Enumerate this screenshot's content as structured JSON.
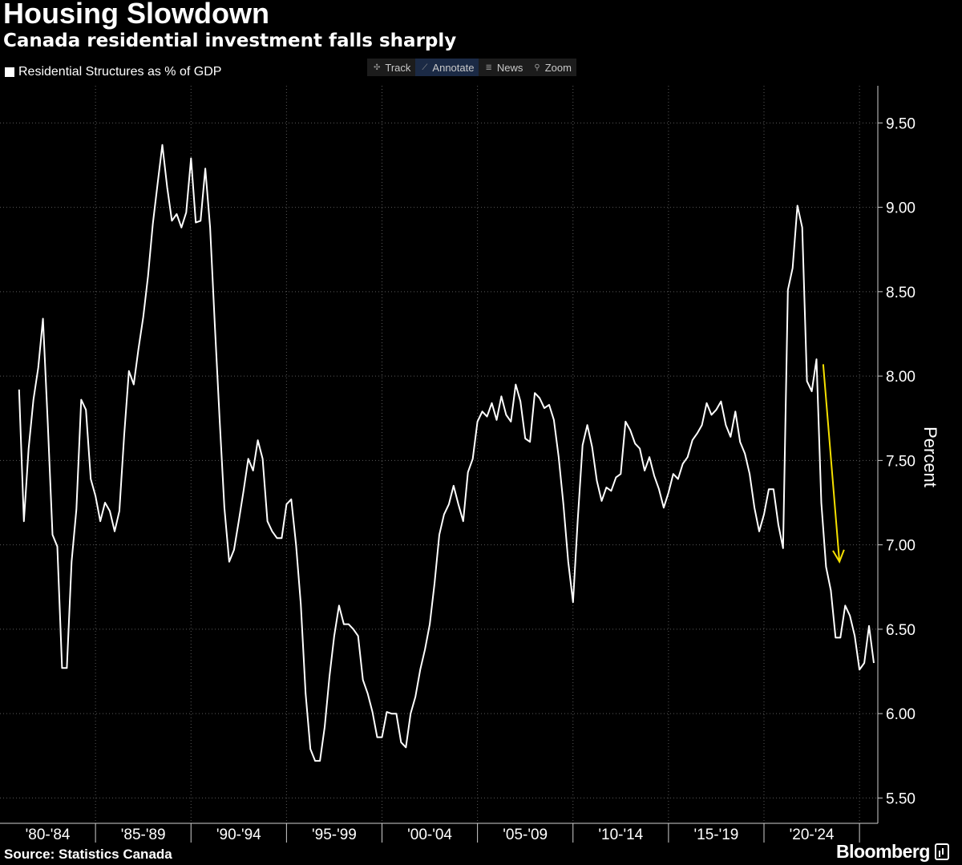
{
  "title": "Housing Slowdown",
  "subtitle": "Canada residential investment falls sharply",
  "legend_label": "Residential Structures as % of GDP",
  "toolbar": [
    {
      "label": "Track",
      "icon": "crosshair-icon",
      "active": false
    },
    {
      "label": "Annotate",
      "icon": "pencil-icon",
      "active": true
    },
    {
      "label": "News",
      "icon": "news-icon",
      "active": false
    },
    {
      "label": "Zoom",
      "icon": "magnifier-icon",
      "active": false
    }
  ],
  "source": "Source: Statistics Canada",
  "brand": "Bloomberg",
  "colors": {
    "background": "#000000",
    "line": "#ffffff",
    "arrow": "#f5e000",
    "grid": "#5a5a5a"
  },
  "chart_data": {
    "type": "line",
    "ylabel": "Percent",
    "ylim": [
      5.35,
      9.72
    ],
    "y_ticks": [
      5.5,
      6.0,
      6.5,
      7.0,
      7.5,
      8.0,
      8.5,
      9.0,
      9.5
    ],
    "y_tick_labels": [
      "5.50",
      "6.00",
      "6.50",
      "7.00",
      "7.50",
      "8.00",
      "8.50",
      "9.00",
      "9.50"
    ],
    "x_period_labels": [
      "'80-'84",
      "'85-'89",
      "'90-'94",
      "'95-'99",
      "'00-'04",
      "'05-'09",
      "'10-'14",
      "'15-'19",
      "'20-'24"
    ],
    "x_start": 1981.0,
    "quarters_per_year": 4,
    "grid": "vertical dotted",
    "legend": "top-left",
    "series": [
      {
        "name": "Residential Structures as % of GDP",
        "values": [
          7.92,
          7.14,
          7.57,
          7.86,
          8.05,
          8.34,
          7.72,
          7.06,
          6.99,
          6.27,
          6.27,
          6.9,
          7.21,
          7.86,
          7.8,
          7.39,
          7.29,
          7.14,
          7.25,
          7.2,
          7.08,
          7.2,
          7.65,
          8.03,
          7.95,
          8.16,
          8.35,
          8.59,
          8.9,
          9.14,
          9.37,
          9.12,
          8.92,
          8.96,
          8.88,
          8.97,
          9.29,
          8.91,
          8.92,
          9.23,
          8.88,
          8.3,
          7.74,
          7.22,
          6.9,
          6.97,
          7.14,
          7.32,
          7.51,
          7.44,
          7.62,
          7.51,
          7.14,
          7.08,
          7.04,
          7.04,
          7.24,
          7.27,
          7.0,
          6.65,
          6.12,
          5.79,
          5.72,
          5.72,
          5.92,
          6.22,
          6.46,
          6.64,
          6.53,
          6.53,
          6.5,
          6.46,
          6.2,
          6.12,
          6.01,
          5.86,
          5.86,
          6.01,
          6.0,
          6.0,
          5.83,
          5.8,
          6.0,
          6.1,
          6.26,
          6.38,
          6.53,
          6.77,
          7.06,
          7.18,
          7.24,
          7.35,
          7.24,
          7.14,
          7.43,
          7.51,
          7.73,
          7.79,
          7.76,
          7.84,
          7.74,
          7.88,
          7.77,
          7.73,
          7.95,
          7.85,
          7.63,
          7.61,
          7.9,
          7.87,
          7.81,
          7.83,
          7.74,
          7.52,
          7.24,
          6.9,
          6.66,
          7.15,
          7.59,
          7.71,
          7.58,
          7.38,
          7.26,
          7.34,
          7.32,
          7.4,
          7.42,
          7.73,
          7.68,
          7.6,
          7.57,
          7.44,
          7.52,
          7.41,
          7.33,
          7.22,
          7.31,
          7.42,
          7.39,
          7.48,
          7.52,
          7.62,
          7.66,
          7.71,
          7.84,
          7.77,
          7.8,
          7.85,
          7.71,
          7.64,
          7.79,
          7.61,
          7.54,
          7.42,
          7.22,
          7.08,
          7.18,
          7.33,
          7.33,
          7.12,
          6.98,
          8.51,
          8.64,
          9.01,
          8.88,
          7.97,
          7.91,
          8.1,
          7.25,
          6.87,
          6.73,
          6.45,
          6.45,
          6.64,
          6.58,
          6.46,
          6.26,
          6.3,
          6.52,
          6.3
        ]
      }
    ],
    "annotation": {
      "type": "arrow",
      "color": "#f5e000",
      "from": {
        "x": 2023.1,
        "y": 8.07
      },
      "to": {
        "x": 2023.95,
        "y": 6.9
      }
    }
  }
}
